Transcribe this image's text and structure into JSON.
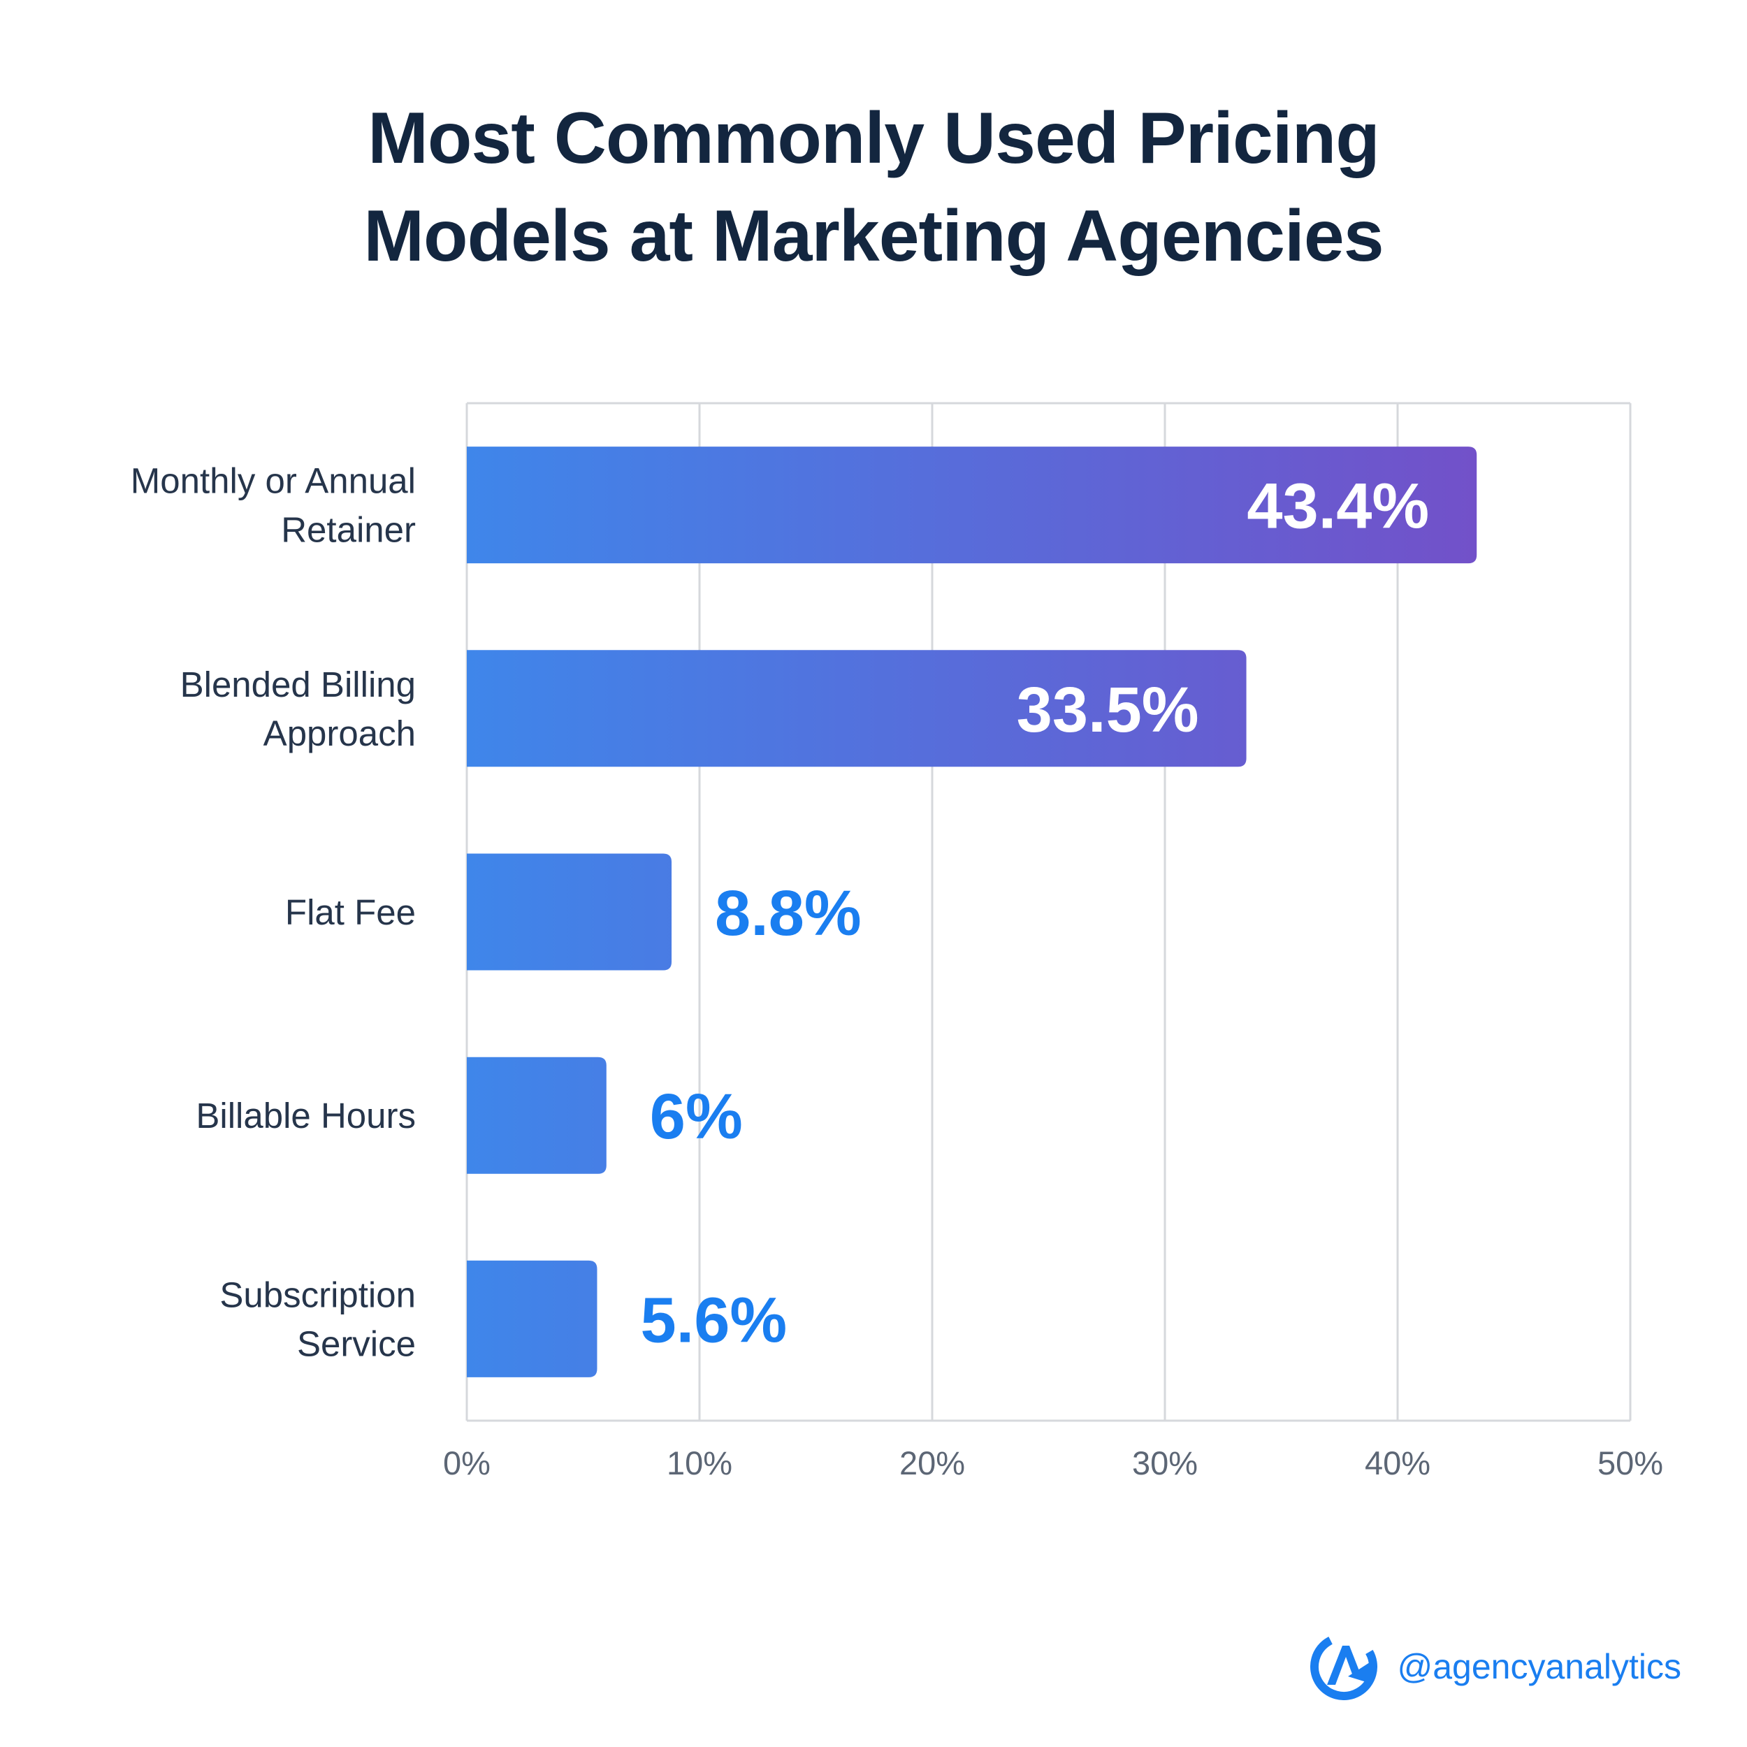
{
  "chart_data": {
    "type": "bar",
    "orientation": "horizontal",
    "title_lines": [
      "Most Commonly Used Pricing",
      "Models at Marketing Agencies"
    ],
    "categories": [
      [
        "Monthly or Annual",
        "Retainer"
      ],
      [
        "Blended Billing",
        "Approach"
      ],
      [
        "Flat Fee"
      ],
      [
        "Billable Hours"
      ],
      [
        "Subscription",
        "Service"
      ]
    ],
    "values": [
      43.4,
      33.5,
      8.8,
      6,
      5.6
    ],
    "value_labels": [
      "43.4%",
      "33.5%",
      "8.8%",
      "6%",
      "5.6%"
    ],
    "xlim": [
      0,
      50
    ],
    "ticks": [
      0,
      10,
      20,
      30,
      40,
      50
    ],
    "tick_labels": [
      "0%",
      "10%",
      "20%",
      "30%",
      "40%",
      "50%"
    ],
    "grid": true,
    "xlabel": "",
    "ylabel": ""
  },
  "colors": {
    "title": "#13263f",
    "bar_start": "#3f86ea",
    "bar_end": "#7251c9",
    "value_outside": "#1a7ef0",
    "grid": "#d6d8dc",
    "brand": "#1a7ef0"
  },
  "brand": {
    "icon": "agencyanalytics-logo-icon",
    "handle": "@agencyanalytics"
  }
}
